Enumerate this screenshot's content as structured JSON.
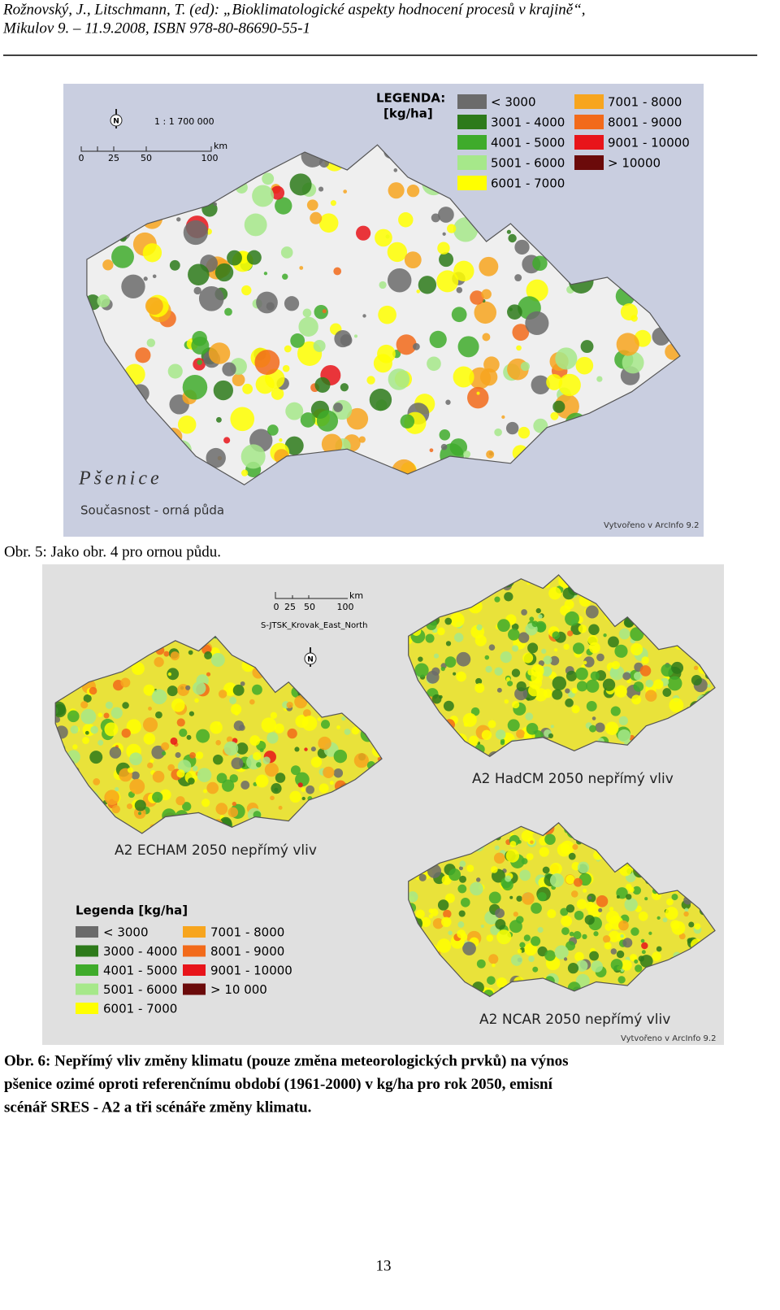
{
  "header": {
    "lines": [
      "Rožnovský, J., Litschmann, T. (ed): „Bioklimatologické aspekty hodnocení procesů v krajině“,",
      "Mikulov 9. – 11.9.2008, ISBN 978-80-86690-55-1"
    ]
  },
  "figures": [
    {
      "north": "N",
      "scale": {
        "ratio": "1 : 1 700 000",
        "ticks": [
          "0",
          "25",
          "50",
          "100"
        ],
        "unit": "km"
      },
      "legend": {
        "title": "LEGENDA:",
        "unit": "[kg/ha]",
        "items": [
          {
            "label": "< 3000",
            "color": "#6b6b6b"
          },
          {
            "label": "3001 - 4000",
            "color": "#2d7a1a"
          },
          {
            "label": "4001 - 5000",
            "color": "#3fab2b"
          },
          {
            "label": "5001 - 6000",
            "color": "#a6e88a"
          },
          {
            "label": "6001 - 7000",
            "color": "#ffff00"
          },
          {
            "label": "7001 - 8000",
            "color": "#f7a51e"
          },
          {
            "label": "8001 - 9000",
            "color": "#f26a1a"
          },
          {
            "label": "9001 - 10000",
            "color": "#e8141a"
          },
          {
            "label": "> 10000",
            "color": "#6b0a0a"
          }
        ]
      },
      "map_title": "Pšenice",
      "map_subtitle": "Současnost - orná půda",
      "credit": "Vytvořeno v ArcInfo 9.2",
      "caption": [
        "Obr. 5:  Jako obr. 4 pro ornou půdu."
      ]
    },
    {
      "north": "N",
      "scale": {
        "ticks": [
          "0",
          "25",
          "50",
          "100"
        ],
        "unit": "km",
        "projection": "S-JTSK_Krovak_East_North"
      },
      "maps": [
        "A2 ECHAM 2050 nepřímý vliv",
        "A2 HadCM 2050 nepřímý vliv",
        "A2 NCAR 2050 nepřímý vliv"
      ],
      "legend": {
        "title": "Legenda [kg/ha]",
        "items": [
          {
            "label": "< 3000",
            "color": "#6b6b6b"
          },
          {
            "label": "3000 - 4000",
            "color": "#2d7a1a"
          },
          {
            "label": "4001 - 5000",
            "color": "#3fab2b"
          },
          {
            "label": "5001 - 6000",
            "color": "#a6e88a"
          },
          {
            "label": "6001 - 7000",
            "color": "#ffff00"
          },
          {
            "label": "7001 - 8000",
            "color": "#f7a51e"
          },
          {
            "label": "8001 - 9000",
            "color": "#f26a1a"
          },
          {
            "label": "9001 - 10000",
            "color": "#e8141a"
          },
          {
            "label": "> 10 000",
            "color": "#6b0a0a"
          }
        ]
      },
      "credit": "Vytvořeno v ArcInfo 9.2",
      "caption": [
        "Obr. 6:  Nepřímý vliv změny klimatu (pouze změna meteorologických prvků) na výnos",
        "pšenice ozimé oproti referenčnímu období (1961-2000) v kg/ha pro rok 2050, emisní",
        "scénář SRES -  A2 a tři scénáře změny klimatu."
      ]
    }
  ],
  "footer": {
    "page": "13"
  }
}
